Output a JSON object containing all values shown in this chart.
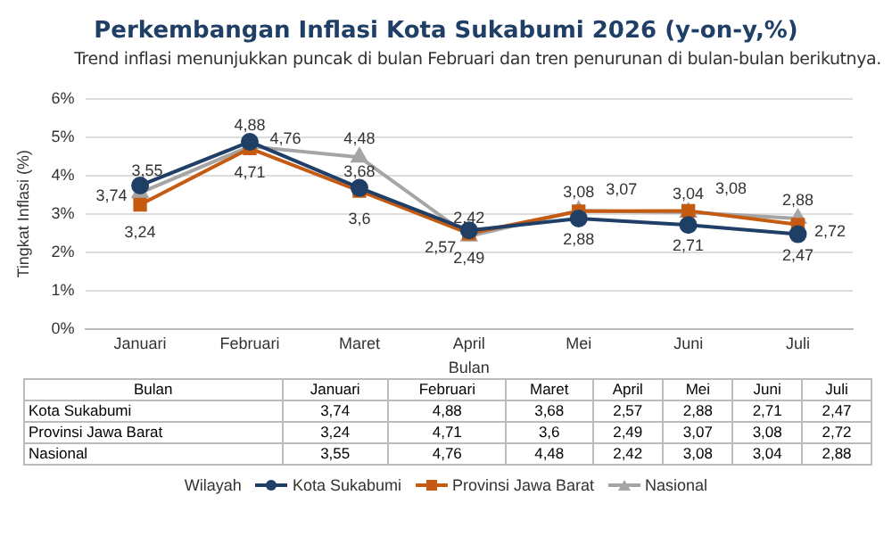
{
  "chart_data": {
    "type": "line",
    "title": "Perkembangan Inflasi Kota Sukabumi 2026 (y-on-y,%)",
    "subtitle": "Trend inflasi menunjukkan puncak di bulan Februari dan tren penurunan di bulan-bulan berikutnya.",
    "xlabel": "Bulan",
    "ylabel": "Tingkat Inflasi (%)",
    "legend_title": "Wilayah",
    "categories": [
      "Januari",
      "Februari",
      "Maret",
      "April",
      "Mei",
      "Juni",
      "Juli"
    ],
    "series": [
      {
        "name": "Kota Sukabumi",
        "color": "#1f3f66",
        "marker": "circle",
        "values": [
          3.74,
          4.88,
          3.68,
          2.57,
          2.88,
          2.71,
          2.47
        ],
        "value_labels": [
          "3,74",
          "4,88",
          "3,68",
          "2,57",
          "2,88",
          "2,71",
          "2,47"
        ]
      },
      {
        "name": "Provinsi Jawa Barat",
        "color": "#c55a11",
        "marker": "square",
        "values": [
          3.24,
          4.71,
          3.6,
          2.49,
          3.07,
          3.08,
          2.72
        ],
        "value_labels": [
          "3,24",
          "4,71",
          "3,6",
          "2,49",
          "3,07",
          "3,08",
          "2,72"
        ]
      },
      {
        "name": "Nasional",
        "color": "#a5a5a5",
        "marker": "triangle",
        "values": [
          3.55,
          4.76,
          4.48,
          2.42,
          3.08,
          3.04,
          2.88
        ],
        "value_labels": [
          "3,55",
          "4,76",
          "4,48",
          "2,42",
          "3,08",
          "3,04",
          "2,88"
        ]
      }
    ],
    "ylim": [
      0,
      6
    ],
    "yticks": [
      {
        "value": 0,
        "label": "0%"
      },
      {
        "value": 1,
        "label": "1%"
      },
      {
        "value": 2,
        "label": "2%"
      },
      {
        "value": 3,
        "label": "3%"
      },
      {
        "value": 4,
        "label": "4%"
      },
      {
        "value": 5,
        "label": "5%"
      },
      {
        "value": 6,
        "label": "6%"
      }
    ],
    "grid": "y",
    "legend": "bottom",
    "line_style": "solid"
  }
}
